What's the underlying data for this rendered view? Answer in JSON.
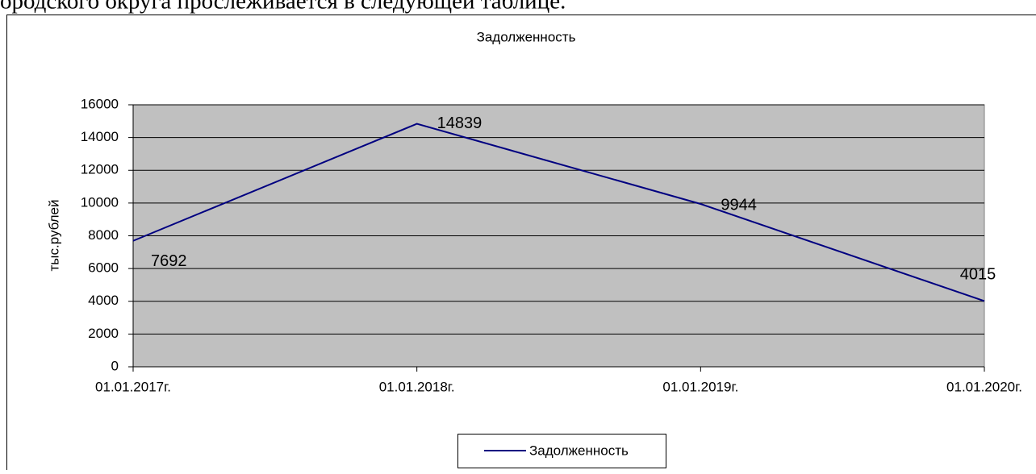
{
  "header_text": "ородского округа прослеживается в следующей таблице.",
  "chart_data": {
    "type": "line",
    "title": "Задолженность",
    "y_label": "тыс.рублей",
    "categories": [
      "01.01.2017г.",
      "01.01.2018г.",
      "01.01.2019г.",
      "01.01.2020г."
    ],
    "series": [
      {
        "name": "Задолженность",
        "color": "#000080",
        "values": [
          7692,
          14839,
          9944,
          4015
        ]
      }
    ],
    "ylim": [
      0,
      16000
    ],
    "yticks": [
      0,
      2000,
      4000,
      6000,
      8000,
      10000,
      12000,
      14000,
      16000
    ],
    "grid": true,
    "plot_background": "#c0c0c0",
    "legend": "bottom"
  }
}
